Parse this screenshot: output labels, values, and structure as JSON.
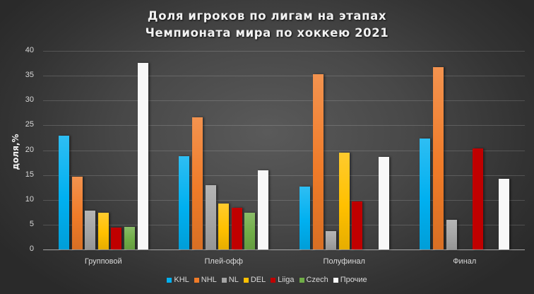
{
  "chart_data": {
    "type": "bar",
    "title": "Доля игроков по лигам на этапах Чемпионата мира по хоккею 2021",
    "title_lines": [
      "Доля игроков по лигам на этапах",
      "Чемпионата мира по хоккею 2021"
    ],
    "xlabel": "",
    "ylabel": "доля,%",
    "ylim": [
      0,
      40
    ],
    "yticks": [
      0,
      5,
      10,
      15,
      20,
      25,
      30,
      35,
      40
    ],
    "grid": true,
    "legend_position": "bottom",
    "categories": [
      "Групповой",
      "Плей-офф",
      "Полуфинал",
      "Финал"
    ],
    "series": [
      {
        "name": "KHL",
        "color": "#00b0f0",
        "values": [
          22.9,
          18.8,
          12.7,
          22.3
        ]
      },
      {
        "name": "NHL",
        "color": "#f07b28",
        "values": [
          14.7,
          26.6,
          35.3,
          36.7
        ]
      },
      {
        "name": "NL",
        "color": "#a5a5a5",
        "values": [
          7.8,
          12.9,
          3.7,
          6.0
        ]
      },
      {
        "name": "DEL",
        "color": "#ffc000",
        "values": [
          7.4,
          9.2,
          19.5,
          0
        ]
      },
      {
        "name": "Liiga",
        "color": "#c00000",
        "values": [
          4.4,
          8.4,
          9.7,
          20.3
        ]
      },
      {
        "name": "Czech",
        "color": "#70ad47",
        "values": [
          4.6,
          7.4,
          0,
          0
        ]
      },
      {
        "name": "Прочие",
        "color": "#f8f8f8",
        "values": [
          37.6,
          15.9,
          18.6,
          14.2
        ]
      }
    ]
  }
}
